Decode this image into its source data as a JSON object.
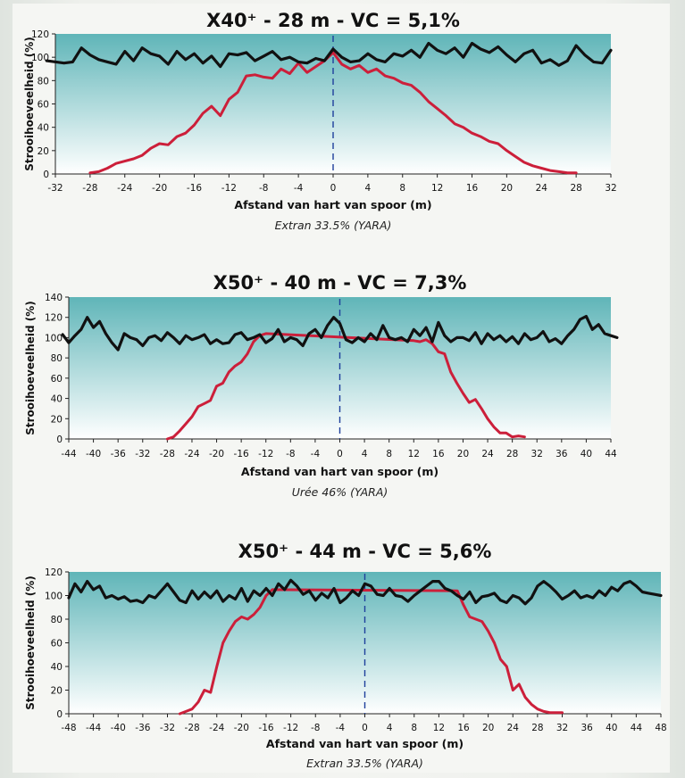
{
  "colors": {
    "area_top": "#5fb5b8",
    "area_bottom": "#ffffff",
    "series_uniform": "#111111",
    "series_single": "#cc1f3a",
    "center_line": "#1e3f9c"
  },
  "chart_data": [
    {
      "type": "line",
      "title": "X40⁺ - 28 m - VC = 5,1%",
      "xlabel": "Afstand van hart van spoor (m)",
      "ylabel": "Strooihoeveelheid (%)",
      "caption": "Extran 33.5% (YARA)",
      "xlim": [
        -32,
        32
      ],
      "ylim": [
        0,
        120
      ],
      "xticks": [
        -32,
        -28,
        -24,
        -20,
        -16,
        -12,
        -8,
        -4,
        0,
        4,
        8,
        12,
        16,
        20,
        24,
        28,
        32
      ],
      "yticks": [
        0,
        20,
        40,
        60,
        80,
        100,
        120
      ],
      "center_line_x": 0,
      "series": [
        {
          "x": [
            -33,
            -31,
            -30,
            -29,
            -28,
            -27,
            -26,
            -25,
            -24,
            -23,
            -22,
            -21,
            -20,
            -19,
            -18,
            -17,
            -16,
            -15,
            -14,
            -13,
            -12,
            -11,
            -10,
            -9,
            -8,
            -7,
            -6,
            -5,
            -4,
            -3,
            -2,
            -1,
            0,
            1,
            2,
            3,
            4,
            5,
            6,
            7,
            8,
            9,
            10,
            11,
            12,
            13,
            14,
            15,
            16,
            17,
            18,
            19,
            20,
            21,
            22,
            23,
            24,
            25,
            26,
            27,
            28,
            29,
            30,
            31,
            32
          ],
          "values": [
            97,
            95,
            96,
            108,
            102,
            98,
            96,
            94,
            105,
            97,
            108,
            103,
            101,
            94,
            105,
            98,
            103,
            95,
            101,
            92,
            103,
            102,
            104,
            97,
            101,
            105,
            98,
            100,
            96,
            95,
            99,
            97,
            107,
            100,
            96,
            97,
            103,
            98,
            96,
            103,
            101,
            106,
            100,
            112,
            106,
            103,
            108,
            100,
            112,
            107,
            104,
            109,
            102,
            96,
            103,
            106,
            95,
            98,
            93,
            97,
            110,
            102,
            96,
            95,
            106
          ]
        },
        {
          "x": [
            -28,
            -27,
            -26,
            -25,
            -24,
            -23,
            -22,
            -21,
            -20,
            -19,
            -18,
            -17,
            -16,
            -15,
            -14,
            -13,
            -12,
            -11,
            -10,
            -9,
            -8,
            -7,
            -6,
            -5,
            -4,
            -3,
            -2,
            -1,
            0,
            1,
            2,
            3,
            4,
            5,
            6,
            7,
            8,
            9,
            10,
            11,
            12,
            13,
            14,
            15,
            16,
            17,
            18,
            19,
            20,
            21,
            22,
            23,
            24,
            25,
            26,
            27,
            28
          ],
          "values": [
            1,
            2,
            5,
            9,
            11,
            13,
            16,
            22,
            26,
            25,
            32,
            35,
            42,
            52,
            58,
            50,
            64,
            70,
            84,
            85,
            83,
            82,
            90,
            86,
            95,
            87,
            92,
            97,
            104,
            94,
            90,
            93,
            87,
            90,
            84,
            82,
            78,
            76,
            70,
            62,
            56,
            50,
            43,
            40,
            35,
            32,
            28,
            26,
            20,
            15,
            10,
            7,
            5,
            3,
            2,
            1,
            1
          ]
        }
      ]
    },
    {
      "type": "line",
      "title": "X50⁺ - 40 m - VC = 7,3%",
      "xlabel": "Afstand van hart van spoor (m)",
      "ylabel": "Strooihoeveelheid (%)",
      "caption": "Urée 46% (YARA)",
      "xlim": [
        -44,
        44
      ],
      "ylim": [
        0,
        140
      ],
      "xticks": [
        -44,
        -40,
        -36,
        -32,
        -28,
        -24,
        -20,
        -16,
        -12,
        -8,
        -4,
        0,
        4,
        8,
        12,
        16,
        20,
        24,
        28,
        32,
        36,
        40,
        44
      ],
      "yticks": [
        0,
        20,
        40,
        60,
        80,
        100,
        120,
        140
      ],
      "center_line_x": 0,
      "series": [
        {
          "x": [
            -45,
            -44,
            -43,
            -42,
            -41,
            -40,
            -39,
            -38,
            -37,
            -36,
            -35,
            -34,
            -33,
            -32,
            -31,
            -30,
            -29,
            -28,
            -27,
            -26,
            -25,
            -24,
            -23,
            -22,
            -21,
            -20,
            -19,
            -18,
            -17,
            -16,
            -15,
            -14,
            -13,
            -12,
            -11,
            -10,
            -9,
            -8,
            -7,
            -6,
            -5,
            -4,
            -3,
            -2,
            -1,
            0,
            1,
            2,
            3,
            4,
            5,
            6,
            7,
            8,
            9,
            10,
            11,
            12,
            13,
            14,
            15,
            16,
            17,
            18,
            19,
            20,
            21,
            22,
            23,
            24,
            25,
            26,
            27,
            28,
            29,
            30,
            31,
            32,
            33,
            34,
            35,
            36,
            37,
            38,
            39,
            40,
            41,
            42,
            43,
            44,
            45
          ],
          "values": [
            103,
            95,
            102,
            108,
            120,
            110,
            116,
            104,
            95,
            88,
            104,
            100,
            98,
            92,
            100,
            102,
            97,
            105,
            100,
            94,
            102,
            98,
            100,
            103,
            94,
            98,
            94,
            95,
            103,
            105,
            98,
            100,
            103,
            95,
            99,
            108,
            96,
            100,
            98,
            92,
            104,
            108,
            100,
            112,
            120,
            114,
            98,
            95,
            100,
            96,
            104,
            98,
            112,
            100,
            98,
            100,
            96,
            108,
            102,
            110,
            96,
            115,
            102,
            96,
            100,
            100,
            97,
            105,
            94,
            104,
            98,
            102,
            96,
            101,
            94,
            104,
            98,
            100,
            106,
            96,
            99,
            94,
            102,
            108,
            118,
            121,
            108,
            113,
            104,
            102,
            100
          ]
        },
        {
          "x": [
            -28,
            -27,
            -26,
            -25,
            -24,
            -23,
            -22,
            -21,
            -20,
            -19,
            -18,
            -17,
            -16,
            -15,
            -14,
            -13,
            -12,
            12,
            13,
            14,
            15,
            16,
            17,
            18,
            19,
            20,
            21,
            22,
            23,
            24,
            25,
            26,
            27,
            28,
            29,
            30
          ],
          "values": [
            0,
            2,
            8,
            15,
            22,
            32,
            35,
            38,
            52,
            55,
            66,
            72,
            76,
            84,
            96,
            102,
            104,
            97,
            96,
            98,
            94,
            86,
            84,
            66,
            55,
            45,
            36,
            39,
            30,
            20,
            12,
            6,
            6,
            2,
            3,
            2
          ]
        }
      ]
    },
    {
      "type": "line",
      "title": "X50⁺ - 44 m - VC = 5,6%",
      "xlabel": "Afstand van hart van spoor (m)",
      "ylabel": "Strooihoeveelheid (%)",
      "caption": "Extran 33.5% (YARA)",
      "xlim": [
        -48,
        48
      ],
      "ylim": [
        0,
        120
      ],
      "xticks": [
        -48,
        -44,
        -40,
        -36,
        -32,
        -28,
        -24,
        -20,
        -16,
        -12,
        -8,
        -4,
        0,
        4,
        8,
        12,
        16,
        20,
        24,
        28,
        32,
        36,
        40,
        44,
        48
      ],
      "yticks": [
        0,
        20,
        40,
        60,
        80,
        100,
        120
      ],
      "center_line_x": 0,
      "series": [
        {
          "x": [
            -48,
            -47,
            -46,
            -45,
            -44,
            -43,
            -42,
            -41,
            -40,
            -39,
            -38,
            -37,
            -36,
            -35,
            -34,
            -33,
            -32,
            -31,
            -30,
            -29,
            -28,
            -27,
            -26,
            -25,
            -24,
            -23,
            -22,
            -21,
            -20,
            -19,
            -18,
            -17,
            -16,
            -15,
            -14,
            -13,
            -12,
            -11,
            -10,
            -9,
            -8,
            -7,
            -6,
            -5,
            -4,
            -3,
            -2,
            -1,
            0,
            1,
            2,
            3,
            4,
            5,
            6,
            7,
            8,
            9,
            10,
            11,
            12,
            13,
            14,
            15,
            16,
            17,
            18,
            19,
            20,
            21,
            22,
            23,
            24,
            25,
            26,
            27,
            28,
            29,
            30,
            31,
            32,
            33,
            34,
            35,
            36,
            37,
            38,
            39,
            40,
            41,
            42,
            43,
            44,
            45,
            46,
            47,
            48
          ],
          "values": [
            98,
            110,
            103,
            112,
            105,
            108,
            98,
            100,
            97,
            99,
            95,
            96,
            94,
            100,
            98,
            104,
            110,
            103,
            96,
            94,
            104,
            97,
            103,
            98,
            104,
            95,
            100,
            97,
            106,
            95,
            104,
            100,
            106,
            100,
            110,
            105,
            113,
            108,
            101,
            104,
            96,
            102,
            98,
            106,
            94,
            98,
            104,
            100,
            110,
            108,
            101,
            100,
            106,
            100,
            99,
            95,
            100,
            104,
            108,
            112,
            112,
            106,
            104,
            100,
            97,
            103,
            94,
            99,
            100,
            102,
            96,
            94,
            100,
            98,
            93,
            98,
            108,
            112,
            108,
            103,
            97,
            100,
            104,
            98,
            100,
            98,
            104,
            100,
            107,
            104,
            110,
            112,
            108,
            103,
            102,
            101,
            100
          ]
        },
        {
          "x": [
            -30,
            -29,
            -28,
            -27,
            -26,
            -25,
            -24,
            -23,
            -22,
            -21,
            -20,
            -19,
            -18,
            -17,
            -16,
            -15,
            15,
            16,
            17,
            18,
            19,
            20,
            21,
            22,
            23,
            24,
            25,
            26,
            27,
            28,
            29,
            30,
            31,
            32
          ],
          "values": [
            0,
            2,
            4,
            10,
            20,
            18,
            40,
            60,
            70,
            78,
            82,
            80,
            84,
            90,
            100,
            105,
            104,
            92,
            82,
            80,
            78,
            70,
            60,
            46,
            40,
            20,
            25,
            14,
            8,
            4,
            2,
            1,
            1,
            1
          ]
        }
      ]
    }
  ]
}
